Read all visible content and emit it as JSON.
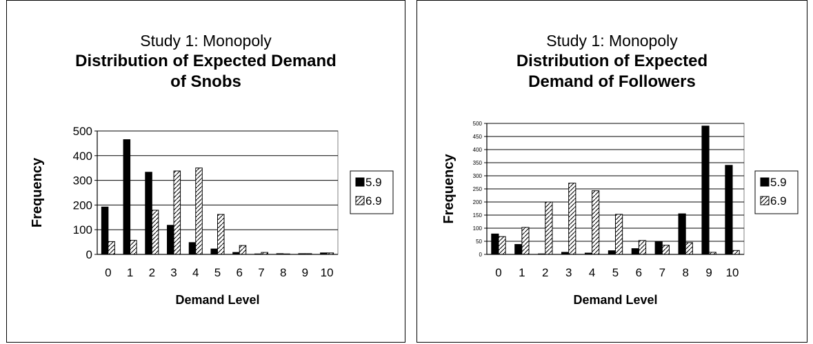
{
  "chart_data": [
    {
      "type": "bar",
      "title_line1": "Study 1: Monopoly",
      "title_line2a": "Distribution of Expected Demand",
      "title_line2b": "of Snobs",
      "xlabel": "Demand Level",
      "ylabel": "Frequency",
      "categories": [
        "0",
        "1",
        "2",
        "3",
        "4",
        "5",
        "6",
        "7",
        "8",
        "9",
        "10"
      ],
      "ylim": [
        0,
        500
      ],
      "yticks": [
        0,
        100,
        200,
        300,
        400,
        500
      ],
      "grid": true,
      "legend": "right",
      "series": [
        {
          "name": "5.9",
          "color": "#000000",
          "pattern": "solid",
          "values": [
            192,
            465,
            333,
            118,
            48,
            22,
            8,
            2,
            3,
            3,
            6
          ]
        },
        {
          "name": "6.9",
          "color": "#ffffff",
          "pattern": "hatched",
          "values": [
            52,
            57,
            179,
            338,
            350,
            162,
            36,
            8,
            2,
            3,
            6
          ]
        }
      ]
    },
    {
      "type": "bar",
      "title_line1": "Study 1: Monopoly",
      "title_line2a": "Distribution of Expected",
      "title_line2b": "Demand of Followers",
      "xlabel": "Demand Level",
      "ylabel": "Frequency",
      "categories": [
        "0",
        "1",
        "2",
        "3",
        "4",
        "5",
        "6",
        "7",
        "8",
        "9",
        "10"
      ],
      "ylim": [
        0,
        500
      ],
      "yticks": [
        0,
        50,
        100,
        150,
        200,
        250,
        300,
        350,
        400,
        450,
        500
      ],
      "grid": true,
      "legend": "right",
      "series": [
        {
          "name": "5.9",
          "color": "#000000",
          "pattern": "solid",
          "values": [
            78,
            38,
            2,
            8,
            5,
            14,
            22,
            48,
            155,
            490,
            340
          ]
        },
        {
          "name": "6.9",
          "color": "#ffffff",
          "pattern": "hatched",
          "values": [
            68,
            103,
            200,
            272,
            243,
            153,
            53,
            35,
            45,
            8,
            15
          ]
        }
      ]
    }
  ]
}
